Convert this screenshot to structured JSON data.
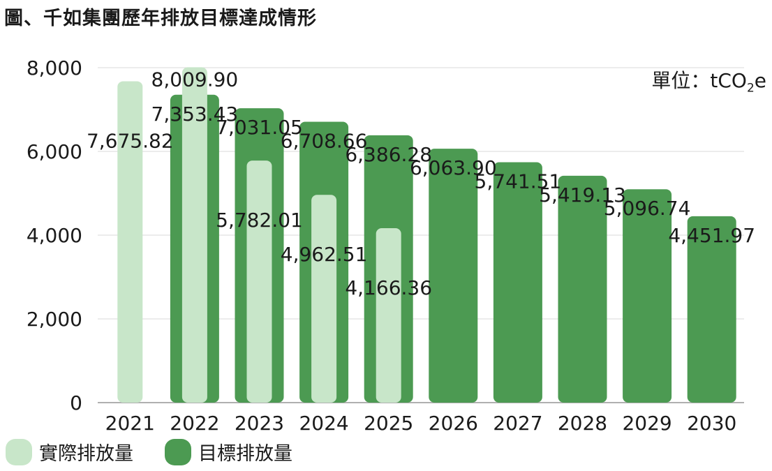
{
  "title": "圖、千如集團歷年排放目標達成情形",
  "unit": {
    "prefix": "單位：tCO",
    "sub": "2",
    "suffix": "e"
  },
  "colors": {
    "actual": "#c8e6c9",
    "target": "#4c9a52",
    "grid": "#d9d9d9",
    "axis": "#b0b0b0"
  },
  "chart_data": {
    "type": "bar",
    "categories": [
      "2021",
      "2022",
      "2023",
      "2024",
      "2025",
      "2026",
      "2027",
      "2028",
      "2029",
      "2030"
    ],
    "series": [
      {
        "name": "實際排放量",
        "values": [
          7675.82,
          8009.9,
          5782.01,
          4962.51,
          4166.36,
          null,
          null,
          null,
          null,
          null
        ],
        "labels": [
          "7,675.82",
          "8,009.90",
          "5,782.01",
          "4,962.51",
          "4,166.36",
          null,
          null,
          null,
          null,
          null
        ]
      },
      {
        "name": "目標排放量",
        "values": [
          null,
          7353.43,
          7031.05,
          6708.66,
          6386.28,
          6063.9,
          5741.51,
          5419.13,
          5096.74,
          4451.97
        ],
        "labels": [
          null,
          "7,353.43",
          "7,031.05",
          "6,708.66",
          "6,386.28",
          "6,063.90",
          "5,741.51",
          "5,419.13",
          "5,096.74",
          "4,451.97"
        ]
      }
    ],
    "ylim": [
      0,
      8000
    ],
    "yticks": [
      0,
      2000,
      4000,
      6000,
      8000
    ],
    "ytick_labels": [
      "0",
      "2,000",
      "4,000",
      "6,000",
      "8,000"
    ],
    "grid": true,
    "legend_position": "bottom-left"
  }
}
